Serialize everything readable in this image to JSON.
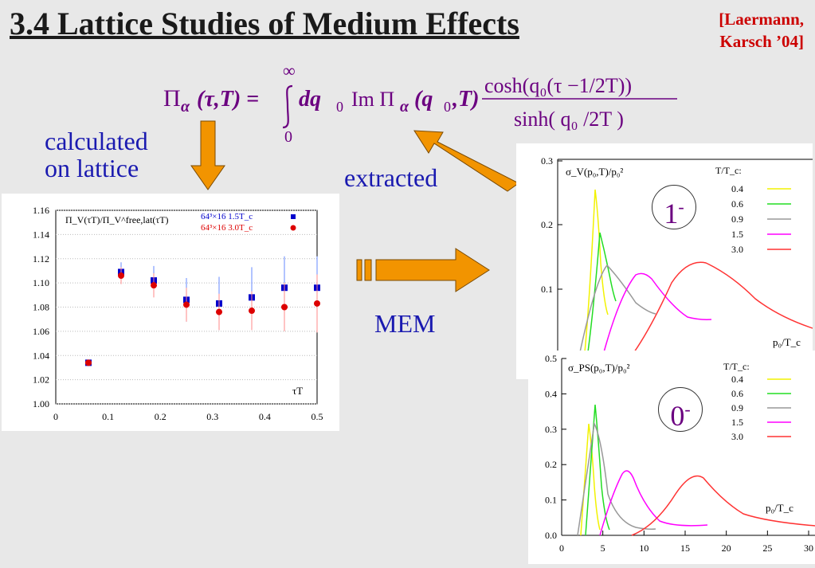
{
  "title": "3.4 Lattice Studies of Medium Effects",
  "citation": {
    "line1": "[Laermann,",
    "line2": "Karsch ’04]"
  },
  "formula": {
    "lhs": "Π",
    "lhs_sub": "α",
    "lhs_args": "(τ,T) =",
    "int_upper": "∞",
    "int_lower": "0",
    "integrand": "dq",
    "integrand_sub": "0",
    "im_part": "Im Π",
    "im_args": "(q",
    "im_args2": ",T)",
    "numerator": "cosh(q₀(τ −1/2T))",
    "denominator": "sinh( q₀ /2T )"
  },
  "labels": {
    "calculated_line1": "calculated",
    "calculated_line2": "on lattice",
    "extracted": "extracted",
    "mem": "MEM"
  },
  "colors": {
    "arrow": "#f29400",
    "text_blue": "#1a1ab0",
    "formula": "#6b0080"
  },
  "chart_data": [
    {
      "type": "scatter",
      "ylabel_text": "Π_V(τT)/Π_V^free,lat(τT)",
      "xlabel": "τT",
      "xlim": [
        0,
        0.5
      ],
      "ylim": [
        1.0,
        1.16
      ],
      "x_ticks": [
        "0",
        "0.1",
        "0.2",
        "0.3",
        "0.4",
        "0.5"
      ],
      "y_ticks": [
        "1.00",
        "1.02",
        "1.04",
        "1.06",
        "1.08",
        "1.10",
        "1.12",
        "1.14",
        "1.16"
      ],
      "series": [
        {
          "name": "64³×16 1.5T_c",
          "color": "#0000cc",
          "x": [
            0.0625,
            0.125,
            0.1875,
            0.25,
            0.3125,
            0.375,
            0.4375,
            0.5
          ],
          "y": [
            1.034,
            1.109,
            1.102,
            1.086,
            1.083,
            1.088,
            1.096,
            1.096
          ],
          "err": [
            0.002,
            0.008,
            0.012,
            0.018,
            0.022,
            0.025,
            0.026,
            0.026
          ]
        },
        {
          "name": "64³×16 3.0T_c",
          "color": "#dd0000",
          "x": [
            0.0625,
            0.125,
            0.1875,
            0.25,
            0.3125,
            0.375,
            0.4375,
            0.5
          ],
          "y": [
            1.034,
            1.106,
            1.098,
            1.082,
            1.076,
            1.077,
            1.08,
            1.083
          ],
          "err": [
            0.002,
            0.007,
            0.01,
            0.014,
            0.015,
            0.016,
            0.02,
            0.024
          ]
        }
      ]
    },
    {
      "type": "line",
      "ylabel_text": "σ_V(p₀,T)/p₀²",
      "state_label": "1",
      "state_sup": "-",
      "xlabel": "p₀/T_c",
      "legend_title": "T/T_c:",
      "y_ticks": [
        "0.1",
        "0.2",
        "0.3"
      ],
      "series": [
        {
          "name": "0.4",
          "color": "#f2f200"
        },
        {
          "name": "0.6",
          "color": "#22dd22"
        },
        {
          "name": "0.9",
          "color": "#999999"
        },
        {
          "name": "1.5",
          "color": "#ff00ff"
        },
        {
          "name": "3.0",
          "color": "#ff3333"
        }
      ]
    },
    {
      "type": "line",
      "ylabel_text": "σ_PS(p₀,T)/p₀²",
      "state_label": "0",
      "state_sup": "-",
      "xlabel": "p₀/T_c",
      "legend_title": "T/T_c:",
      "xlim": [
        0,
        30
      ],
      "ylim": [
        0,
        0.5
      ],
      "x_ticks": [
        "0",
        "5",
        "10",
        "15",
        "20",
        "25",
        "30"
      ],
      "y_ticks": [
        "0.0",
        "0.1",
        "0.2",
        "0.3",
        "0.4",
        "0.5"
      ],
      "series": [
        {
          "name": "0.4",
          "color": "#f2f200"
        },
        {
          "name": "0.6",
          "color": "#22dd22"
        },
        {
          "name": "0.9",
          "color": "#999999"
        },
        {
          "name": "1.5",
          "color": "#ff00ff"
        },
        {
          "name": "3.0",
          "color": "#ff3333"
        }
      ]
    }
  ]
}
